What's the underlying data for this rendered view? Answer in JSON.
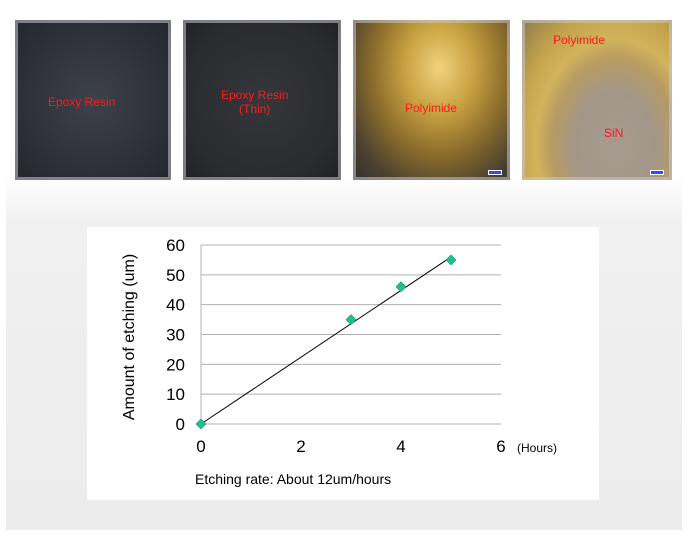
{
  "photos": [
    {
      "labels": [
        "Epoxy Resin"
      ]
    },
    {
      "labels": [
        "Epoxy Resin\n(Thin)"
      ]
    },
    {
      "labels": [
        "Polyimide"
      ]
    },
    {
      "labels": [
        "Polyimide",
        "SiN"
      ]
    }
  ],
  "colors": {
    "photo_label": "#ff1a1a",
    "marker": "#1fbf8f",
    "line": "#000000",
    "grid": "#b0b0b0"
  },
  "chart_data": {
    "type": "scatter",
    "title": "",
    "xlabel": "(Hours)",
    "ylabel": "Amount of etching (um)",
    "xlim": [
      0,
      6
    ],
    "ylim": [
      0,
      60
    ],
    "x_ticks": [
      0,
      2,
      4,
      6
    ],
    "y_ticks": [
      0,
      10,
      20,
      30,
      40,
      50,
      60
    ],
    "grid": "horizontal",
    "series": [
      {
        "x": [
          0,
          3,
          4,
          5
        ],
        "y": [
          0,
          35,
          46,
          55
        ]
      }
    ],
    "trendline": {
      "x": [
        0,
        5
      ],
      "y": [
        0,
        56
      ]
    },
    "annotation": "Etching rate: About 12um/hours"
  }
}
